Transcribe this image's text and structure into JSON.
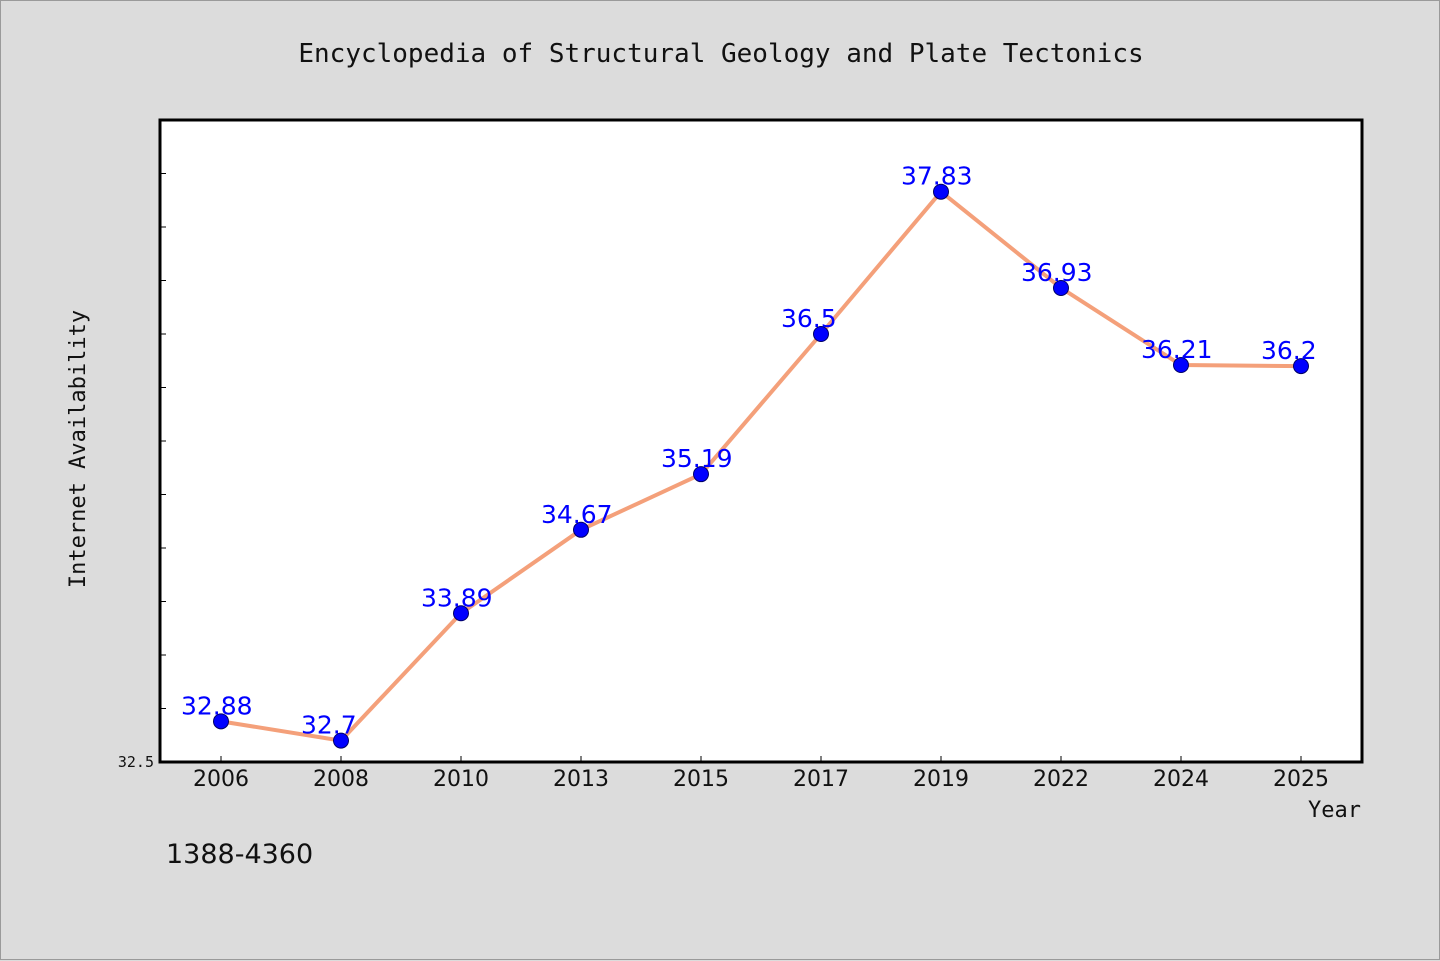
{
  "chart_data": {
    "type": "line",
    "title": "Encyclopedia of Structural Geology and Plate Tectonics",
    "xlabel": "Year",
    "ylabel": "Internet Availability",
    "categories": [
      "2006",
      "2008",
      "2010",
      "2013",
      "2015",
      "2017",
      "2019",
      "2022",
      "2024",
      "2025"
    ],
    "series": [
      {
        "values": [
          32.88,
          32.7,
          33.89,
          34.67,
          35.19,
          36.5,
          37.83,
          36.93,
          36.21,
          36.2
        ],
        "data_labels": [
          "32.88",
          "32.7",
          "33.89",
          "34.67",
          "35.19",
          "36.5",
          "37.83",
          "36.93",
          "36.21",
          "36.2"
        ]
      }
    ],
    "ylim": [
      32.5,
      38.5
    ],
    "y_tick_labels": [
      "32.5"
    ],
    "y_minor_tick_step": 0.5,
    "grid": false,
    "legend": "none",
    "colors": {
      "line": "#f4a07a",
      "marker": "#0000ff",
      "data_label": "#0000ff",
      "plot_background": "#ffffff",
      "page_background": "#dcdcdc"
    },
    "footnote": "1388-4360"
  }
}
